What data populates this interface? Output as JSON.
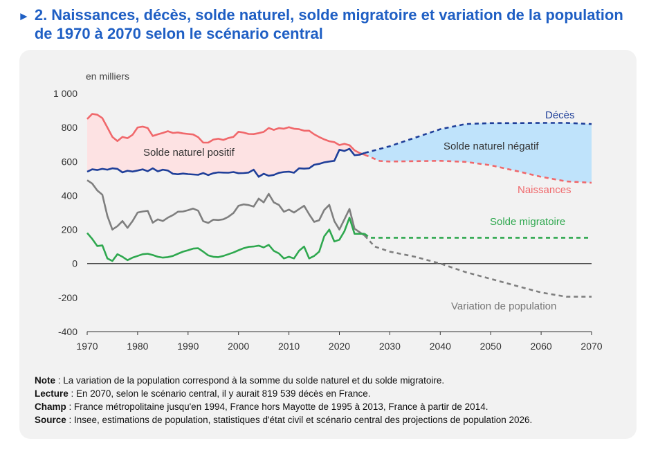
{
  "header": {
    "title": "2. Naissances, décès, solde naturel, solde migratoire et variation de la population de 1970 à 2070 selon le scénario central"
  },
  "chart_data": {
    "type": "line",
    "ylabel": "en milliers",
    "ylim": [
      -400,
      1000
    ],
    "xlim": [
      1970,
      2070
    ],
    "y_ticks": [
      -400,
      -200,
      0,
      200,
      400,
      600,
      800,
      1000
    ],
    "y_tick_labels": [
      "-400",
      "-200",
      "0",
      "200",
      "400",
      "600",
      "800",
      "1 000"
    ],
    "x_ticks": [
      1970,
      1980,
      1990,
      2000,
      2010,
      2020,
      2030,
      2040,
      2050,
      2060,
      2070
    ],
    "x_tick_labels": [
      "1970",
      "1980",
      "1990",
      "2000",
      "2010",
      "2020",
      "2030",
      "2040",
      "2050",
      "2060",
      "2070"
    ],
    "grid": false,
    "series": [
      {
        "name": "Naissances",
        "color": "#f0686b",
        "observed": [
          [
            1970,
            850
          ],
          [
            1971,
            880
          ],
          [
            1972,
            875
          ],
          [
            1973,
            855
          ],
          [
            1974,
            800
          ],
          [
            1975,
            745
          ],
          [
            1976,
            720
          ],
          [
            1977,
            745
          ],
          [
            1978,
            737
          ],
          [
            1979,
            757
          ],
          [
            1980,
            800
          ],
          [
            1981,
            805
          ],
          [
            1982,
            797
          ],
          [
            1983,
            750
          ],
          [
            1984,
            760
          ],
          [
            1985,
            768
          ],
          [
            1986,
            778
          ],
          [
            1987,
            768
          ],
          [
            1988,
            771
          ],
          [
            1989,
            765
          ],
          [
            1990,
            762
          ],
          [
            1991,
            759
          ],
          [
            1992,
            743
          ],
          [
            1993,
            711
          ],
          [
            1994,
            711
          ],
          [
            1995,
            729
          ],
          [
            1996,
            734
          ],
          [
            1997,
            727
          ],
          [
            1998,
            738
          ],
          [
            1999,
            745
          ],
          [
            2000,
            775
          ],
          [
            2001,
            770
          ],
          [
            2002,
            762
          ],
          [
            2003,
            761
          ],
          [
            2004,
            767
          ],
          [
            2005,
            774
          ],
          [
            2006,
            797
          ],
          [
            2007,
            786
          ],
          [
            2008,
            796
          ],
          [
            2009,
            793
          ],
          [
            2010,
            802
          ],
          [
            2011,
            793
          ],
          [
            2012,
            790
          ],
          [
            2013,
            781
          ],
          [
            2014,
            781
          ],
          [
            2015,
            760
          ],
          [
            2016,
            744
          ],
          [
            2017,
            730
          ],
          [
            2018,
            719
          ],
          [
            2019,
            714
          ],
          [
            2020,
            697
          ],
          [
            2021,
            704
          ],
          [
            2022,
            696
          ],
          [
            2023,
            666
          ],
          [
            2024,
            650
          ],
          [
            2025,
            640
          ]
        ],
        "projected": [
          [
            2025,
            640
          ],
          [
            2028,
            603
          ],
          [
            2030,
            600
          ],
          [
            2035,
            602
          ],
          [
            2040,
            604
          ],
          [
            2045,
            598
          ],
          [
            2050,
            578
          ],
          [
            2055,
            545
          ],
          [
            2060,
            510
          ],
          [
            2065,
            483
          ],
          [
            2070,
            475
          ]
        ]
      },
      {
        "name": "Décès",
        "color": "#1f3f99",
        "observed": [
          [
            1970,
            540
          ],
          [
            1971,
            554
          ],
          [
            1972,
            550
          ],
          [
            1973,
            557
          ],
          [
            1974,
            552
          ],
          [
            1975,
            560
          ],
          [
            1976,
            557
          ],
          [
            1977,
            536
          ],
          [
            1978,
            546
          ],
          [
            1979,
            541
          ],
          [
            1980,
            547
          ],
          [
            1981,
            554
          ],
          [
            1982,
            543
          ],
          [
            1983,
            560
          ],
          [
            1984,
            542
          ],
          [
            1985,
            552
          ],
          [
            1986,
            547
          ],
          [
            1987,
            528
          ],
          [
            1988,
            525
          ],
          [
            1989,
            529
          ],
          [
            1990,
            526
          ],
          [
            1991,
            524
          ],
          [
            1992,
            522
          ],
          [
            1993,
            532
          ],
          [
            1994,
            520
          ],
          [
            1995,
            531
          ],
          [
            1996,
            536
          ],
          [
            1997,
            535
          ],
          [
            1998,
            534
          ],
          [
            1999,
            538
          ],
          [
            2000,
            531
          ],
          [
            2001,
            532
          ],
          [
            2002,
            535
          ],
          [
            2003,
            552
          ],
          [
            2004,
            510
          ],
          [
            2005,
            528
          ],
          [
            2006,
            516
          ],
          [
            2007,
            521
          ],
          [
            2008,
            533
          ],
          [
            2009,
            538
          ],
          [
            2010,
            540
          ],
          [
            2011,
            534
          ],
          [
            2012,
            560
          ],
          [
            2013,
            558
          ],
          [
            2014,
            560
          ],
          [
            2015,
            581
          ],
          [
            2016,
            586
          ],
          [
            2017,
            595
          ],
          [
            2018,
            600
          ],
          [
            2019,
            604
          ],
          [
            2020,
            669
          ],
          [
            2021,
            662
          ],
          [
            2022,
            675
          ],
          [
            2023,
            637
          ],
          [
            2024,
            640
          ],
          [
            2025,
            650
          ]
        ],
        "projected": [
          [
            2025,
            650
          ],
          [
            2030,
            690
          ],
          [
            2035,
            740
          ],
          [
            2040,
            790
          ],
          [
            2045,
            820
          ],
          [
            2050,
            826
          ],
          [
            2055,
            826
          ],
          [
            2060,
            827
          ],
          [
            2065,
            827
          ],
          [
            2070,
            820
          ]
        ]
      },
      {
        "name": "Solde migratoire",
        "color": "#2fa84f",
        "observed": [
          [
            1970,
            180
          ],
          [
            1971,
            145
          ],
          [
            1972,
            103
          ],
          [
            1973,
            107
          ],
          [
            1974,
            30
          ],
          [
            1975,
            15
          ],
          [
            1976,
            55
          ],
          [
            1977,
            40
          ],
          [
            1978,
            20
          ],
          [
            1979,
            35
          ],
          [
            1980,
            45
          ],
          [
            1981,
            55
          ],
          [
            1982,
            58
          ],
          [
            1983,
            50
          ],
          [
            1984,
            40
          ],
          [
            1985,
            35
          ],
          [
            1986,
            38
          ],
          [
            1987,
            45
          ],
          [
            1988,
            58
          ],
          [
            1989,
            70
          ],
          [
            1990,
            78
          ],
          [
            1991,
            88
          ],
          [
            1992,
            90
          ],
          [
            1993,
            70
          ],
          [
            1994,
            48
          ],
          [
            1995,
            40
          ],
          [
            1996,
            38
          ],
          [
            1997,
            45
          ],
          [
            1998,
            55
          ],
          [
            1999,
            65
          ],
          [
            2000,
            78
          ],
          [
            2001,
            90
          ],
          [
            2002,
            98
          ],
          [
            2003,
            100
          ],
          [
            2004,
            105
          ],
          [
            2005,
            95
          ],
          [
            2006,
            110
          ],
          [
            2007,
            75
          ],
          [
            2008,
            60
          ],
          [
            2009,
            30
          ],
          [
            2010,
            40
          ],
          [
            2011,
            30
          ],
          [
            2012,
            75
          ],
          [
            2013,
            100
          ],
          [
            2014,
            30
          ],
          [
            2015,
            45
          ],
          [
            2016,
            70
          ],
          [
            2017,
            160
          ],
          [
            2018,
            200
          ],
          [
            2019,
            130
          ],
          [
            2020,
            140
          ],
          [
            2021,
            190
          ],
          [
            2022,
            270
          ],
          [
            2023,
            175
          ],
          [
            2024,
            175
          ],
          [
            2025,
            175
          ]
        ],
        "projected": [
          [
            2025,
            175
          ],
          [
            2026,
            152
          ],
          [
            2030,
            152
          ],
          [
            2040,
            152
          ],
          [
            2050,
            152
          ],
          [
            2060,
            152
          ],
          [
            2070,
            152
          ]
        ]
      },
      {
        "name": "Variation de population",
        "color": "#7f7f7f",
        "observed": [
          [
            1970,
            490
          ],
          [
            1971,
            470
          ],
          [
            1972,
            430
          ],
          [
            1973,
            405
          ],
          [
            1974,
            280
          ],
          [
            1975,
            200
          ],
          [
            1976,
            220
          ],
          [
            1977,
            250
          ],
          [
            1978,
            210
          ],
          [
            1979,
            250
          ],
          [
            1980,
            300
          ],
          [
            1981,
            306
          ],
          [
            1982,
            310
          ],
          [
            1983,
            240
          ],
          [
            1984,
            260
          ],
          [
            1985,
            250
          ],
          [
            1986,
            270
          ],
          [
            1987,
            285
          ],
          [
            1988,
            305
          ],
          [
            1989,
            306
          ],
          [
            1990,
            314
          ],
          [
            1991,
            323
          ],
          [
            1992,
            311
          ],
          [
            1993,
            249
          ],
          [
            1994,
            239
          ],
          [
            1995,
            258
          ],
          [
            1996,
            256
          ],
          [
            1997,
            260
          ],
          [
            1998,
            275
          ],
          [
            1999,
            297
          ],
          [
            2000,
            340
          ],
          [
            2001,
            348
          ],
          [
            2002,
            344
          ],
          [
            2003,
            335
          ],
          [
            2004,
            382
          ],
          [
            2005,
            360
          ],
          [
            2006,
            410
          ],
          [
            2007,
            360
          ],
          [
            2008,
            345
          ],
          [
            2009,
            305
          ],
          [
            2010,
            317
          ],
          [
            2011,
            300
          ],
          [
            2012,
            320
          ],
          [
            2013,
            340
          ],
          [
            2014,
            290
          ],
          [
            2015,
            245
          ],
          [
            2016,
            255
          ],
          [
            2017,
            315
          ],
          [
            2018,
            345
          ],
          [
            2019,
            250
          ],
          [
            2020,
            200
          ],
          [
            2021,
            260
          ],
          [
            2022,
            321
          ],
          [
            2023,
            205
          ],
          [
            2024,
            185
          ],
          [
            2025,
            165
          ]
        ],
        "projected": [
          [
            2025,
            165
          ],
          [
            2027,
            100
          ],
          [
            2030,
            70
          ],
          [
            2035,
            40
          ],
          [
            2040,
            0
          ],
          [
            2045,
            -50
          ],
          [
            2050,
            -90
          ],
          [
            2055,
            -130
          ],
          [
            2060,
            -170
          ],
          [
            2065,
            -195
          ],
          [
            2070,
            -195
          ]
        ]
      }
    ],
    "area_fills": [
      {
        "label": "Solde naturel positif",
        "between": [
          "Naissances",
          "Décès"
        ],
        "color": "#fde2e3"
      },
      {
        "label": "Solde naturel négatif",
        "between": [
          "Décès",
          "Naissances"
        ],
        "color": "#bfe3fb"
      }
    ],
    "annotations": [
      "Décès",
      "Solde naturel négatif",
      "Solde naturel positif",
      "Naissances",
      "Solde migratoire",
      "Variation de population"
    ]
  },
  "notes": [
    {
      "label": "Note",
      "text": " : La variation de la population correspond à la somme du solde naturel et du solde migratoire."
    },
    {
      "label": "Lecture",
      "text": " : En 2070, selon le scénario central, il y aurait 819 539 décès en France."
    },
    {
      "label": "Champ",
      "text": " : France métropolitaine jusqu'en 1994, France hors Mayotte de 1995 à 2013, France à partir de 2014."
    },
    {
      "label": "Source",
      "text": " : Insee, estimations de population, statistiques d'état civil et scénario central des projections de population 2026."
    }
  ]
}
